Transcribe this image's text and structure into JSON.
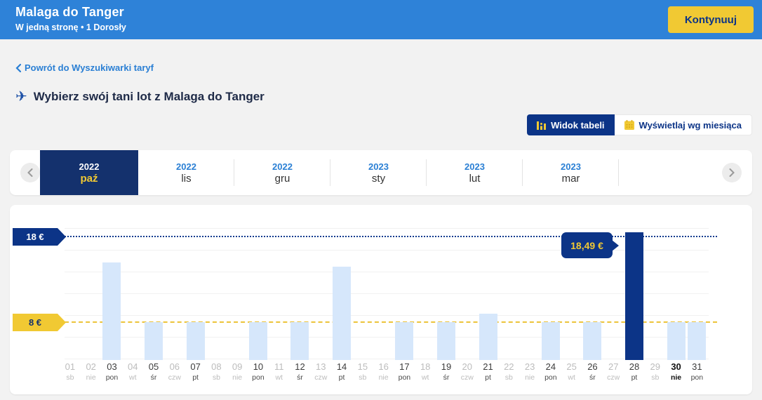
{
  "header": {
    "title": "Malaga do Tanger",
    "subtitle": "W jedną stronę • 1 Dorosły",
    "continue_label": "Kontynuuj"
  },
  "nav": {
    "back_label": "Powrót do Wyszukiwarki taryf"
  },
  "page": {
    "heading": "Wybierz swój tani lot z Malaga do Tanger"
  },
  "view_toggle": {
    "table_view_label": "Widok tabeli",
    "month_view_label": "Wyświetlaj wg miesiąca"
  },
  "months": [
    {
      "year": "2022",
      "label": "paź",
      "selected": true
    },
    {
      "year": "2022",
      "label": "lis",
      "selected": false
    },
    {
      "year": "2022",
      "label": "gru",
      "selected": false
    },
    {
      "year": "2023",
      "label": "sty",
      "selected": false
    },
    {
      "year": "2023",
      "label": "lut",
      "selected": false
    },
    {
      "year": "2023",
      "label": "mar",
      "selected": false
    }
  ],
  "colors": {
    "header_blue": "#2e82d8",
    "link_blue": "#2a7fd4",
    "navy": "#0c3487",
    "yellow": "#f1c933",
    "bar_light": "#d6e7fb",
    "bar_selected": "#0c3487"
  },
  "chart_data": {
    "type": "bar",
    "currency": "€",
    "y_markers": [
      {
        "label": "18 €",
        "value": 18,
        "color": "#0c3487"
      },
      {
        "label": "8 €",
        "value": 8,
        "color": "#f1c933"
      }
    ],
    "ylim": [
      4,
      19
    ],
    "grid": true,
    "selected_day": 28,
    "selected_price_label": "18,49 €",
    "today_day": 30,
    "days": [
      {
        "day": "01",
        "weekday": "sb",
        "price": null
      },
      {
        "day": "02",
        "weekday": "nie",
        "price": null
      },
      {
        "day": "03",
        "weekday": "pon",
        "price": 14.99
      },
      {
        "day": "04",
        "weekday": "wt",
        "price": null
      },
      {
        "day": "05",
        "weekday": "śr",
        "price": 7.99
      },
      {
        "day": "06",
        "weekday": "czw",
        "price": null
      },
      {
        "day": "07",
        "weekday": "pt",
        "price": 7.99
      },
      {
        "day": "08",
        "weekday": "sb",
        "price": null
      },
      {
        "day": "09",
        "weekday": "nie",
        "price": null
      },
      {
        "day": "10",
        "weekday": "pon",
        "price": 7.99
      },
      {
        "day": "11",
        "weekday": "wt",
        "price": null
      },
      {
        "day": "12",
        "weekday": "śr",
        "price": 7.99
      },
      {
        "day": "13",
        "weekday": "czw",
        "price": null
      },
      {
        "day": "14",
        "weekday": "pt",
        "price": 14.49
      },
      {
        "day": "15",
        "weekday": "sb",
        "price": null
      },
      {
        "day": "16",
        "weekday": "nie",
        "price": null
      },
      {
        "day": "17",
        "weekday": "pon",
        "price": 7.99
      },
      {
        "day": "18",
        "weekday": "wt",
        "price": null
      },
      {
        "day": "19",
        "weekday": "śr",
        "price": 7.99
      },
      {
        "day": "20",
        "weekday": "czw",
        "price": null
      },
      {
        "day": "21",
        "weekday": "pt",
        "price": 8.99
      },
      {
        "day": "22",
        "weekday": "sb",
        "price": null
      },
      {
        "day": "23",
        "weekday": "nie",
        "price": null
      },
      {
        "day": "24",
        "weekday": "pon",
        "price": 7.99
      },
      {
        "day": "25",
        "weekday": "wt",
        "price": null
      },
      {
        "day": "26",
        "weekday": "śr",
        "price": 7.99
      },
      {
        "day": "27",
        "weekday": "czw",
        "price": null
      },
      {
        "day": "28",
        "weekday": "pt",
        "price": 18.49
      },
      {
        "day": "29",
        "weekday": "sb",
        "price": null
      },
      {
        "day": "30",
        "weekday": "nie",
        "price": 7.99
      },
      {
        "day": "31",
        "weekday": "pon",
        "price": 7.99
      }
    ]
  }
}
